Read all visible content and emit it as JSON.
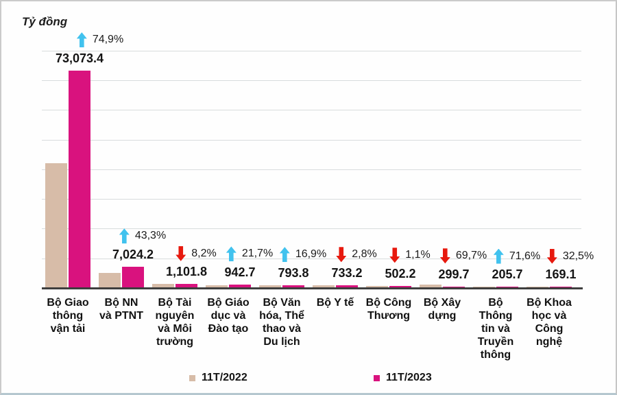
{
  "title": {
    "text": "Tỷ đồng"
  },
  "legend": {
    "items": [
      {
        "label": "11T/2022",
        "color": "#d7bca8"
      },
      {
        "label": "11T/2023",
        "color": "#d9127e"
      }
    ]
  },
  "arrow_colors": {
    "up": "#41c2ee",
    "down": "#e7190e"
  },
  "chart_data": {
    "type": "bar",
    "title": "Tỷ đồng",
    "ylabel": "Tỷ đồng",
    "xlabel": "",
    "ylim": [
      0,
      80000
    ],
    "gridline_step": 10000,
    "grid": true,
    "legend_position": "bottom",
    "categories": [
      "Bộ Giao thông vận tải",
      "Bộ NN và PTNT",
      "Bộ Tài nguyên và Môi trường",
      "Bộ Giáo dục và Đào tạo",
      "Bộ Văn hóa, Thể thao và Du lịch",
      "Bộ Y tế",
      "Bộ Công Thương",
      "Bộ Xây dựng",
      "Bộ Thông tin và Truyền thông",
      "Bộ Khoa học và Công nghệ"
    ],
    "category_labels_wrapped": [
      "Bộ Giao\nthông\nvận tải",
      "Bộ NN\nvà PTNT",
      "Bộ Tài\nnguyên\nvà Môi\ntrường",
      "Bộ Giáo\ndục và\nĐào tạo",
      "Bộ Văn\nhóa, Thể\nthao và\nDu lịch",
      "Bộ Y tế",
      "Bộ Công\nThương",
      "Bộ Xây\ndựng",
      "Bộ\nThông\ntin và\nTruyền\nthông",
      "Bộ Khoa\nhọc và\nCông\nnghệ"
    ],
    "series": [
      {
        "name": "11T/2022",
        "color": "#d7bca8",
        "estimated_from_bar_heights": true,
        "values": [
          41780,
          4901,
          1200,
          775,
          679,
          754,
          508,
          989,
          120,
          250
        ]
      },
      {
        "name": "11T/2023",
        "color": "#d9127e",
        "values": [
          73073.4,
          7024.2,
          1101.8,
          942.7,
          793.8,
          733.2,
          502.2,
          299.7,
          205.7,
          169.1
        ]
      }
    ],
    "value_labels": [
      "73,073.4",
      "7,024.2",
      "1,101.8",
      "942.7",
      "793.8",
      "733.2",
      "502.2",
      "299.7",
      "205.7",
      "169.1"
    ],
    "pct_changes": [
      {
        "label": "74,9%",
        "direction": "up"
      },
      {
        "label": "43,3%",
        "direction": "up"
      },
      {
        "label": "8,2%",
        "direction": "down"
      },
      {
        "label": "21,7%",
        "direction": "up"
      },
      {
        "label": "16,9%",
        "direction": "up"
      },
      {
        "label": "2,8%",
        "direction": "down"
      },
      {
        "label": "1,1%",
        "direction": "down"
      },
      {
        "label": "69,7%",
        "direction": "down"
      },
      {
        "label": "71,6%",
        "direction": "up"
      },
      {
        "label": "32,5%",
        "direction": "down"
      }
    ]
  }
}
